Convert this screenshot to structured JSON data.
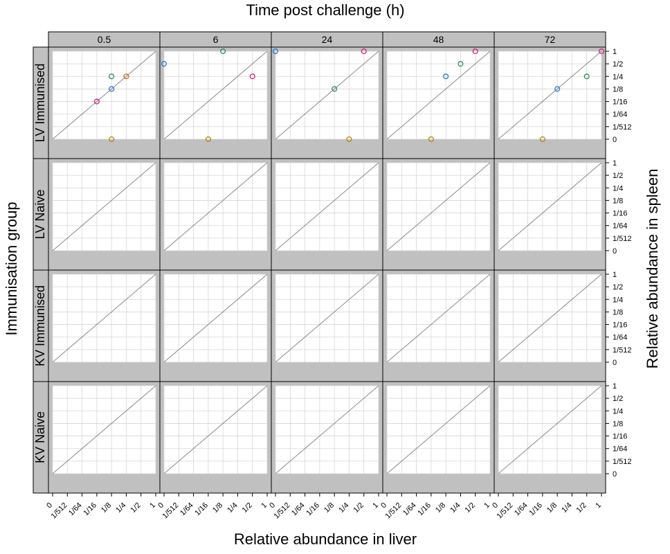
{
  "chart_data": {
    "type": "scatter",
    "title": "Time post challenge (h)",
    "xlabel": "Relative abundance in liver",
    "ylabel_right": "Relative abundance in spleen",
    "ylabel_left": "Immunisation group",
    "columns": [
      "0.5",
      "6",
      "24",
      "48",
      "72"
    ],
    "rows": [
      "LV Immunised",
      "LV Naive",
      "KV Immunised",
      "KV Naive"
    ],
    "x_ticks": [
      "0",
      "1/512",
      "1/64",
      "1/16",
      "1/8",
      "1/4",
      "1/2",
      "1"
    ],
    "y_ticks": [
      "0",
      "1/512",
      "1/64",
      "1/16",
      "1/8",
      "1/4",
      "1/2",
      "1"
    ],
    "grid": true,
    "reference_line": "y = x",
    "marker_colors": [
      "#1f78d1",
      "#2e8b57",
      "#cc1f8a",
      "#b8860b",
      "#d2691e",
      "#9b30d9",
      "#20b2aa"
    ],
    "panels": [
      {
        "row": "LV Immunised",
        "col": "0.5",
        "points": [
          {
            "x": "1/8",
            "y": "1/8"
          },
          {
            "x": "1/8",
            "y": "1/4"
          },
          {
            "x": "1/16",
            "y": "1/16"
          },
          {
            "x": "1/8",
            "y": "0"
          },
          {
            "x": "1/4",
            "y": "1/4"
          }
        ]
      },
      {
        "row": "LV Immunised",
        "col": "6",
        "points": [
          {
            "x": "0",
            "y": "1/2"
          },
          {
            "x": "1/8",
            "y": "1"
          },
          {
            "x": "1/2",
            "y": "1/4"
          },
          {
            "x": "1/16",
            "y": "0"
          }
        ]
      },
      {
        "row": "LV Immunised",
        "col": "24",
        "points": [
          {
            "x": "0",
            "y": "1"
          },
          {
            "x": "1/8",
            "y": "1/8"
          },
          {
            "x": "1/2",
            "y": "1"
          },
          {
            "x": "1/4",
            "y": "0"
          }
        ]
      },
      {
        "row": "LV Immunised",
        "col": "48",
        "points": [
          {
            "x": "1/8",
            "y": "1/4"
          },
          {
            "x": "1/4",
            "y": "1/2"
          },
          {
            "x": "1/2",
            "y": "1"
          },
          {
            "x": "1/16",
            "y": "0"
          }
        ]
      },
      {
        "row": "LV Immunised",
        "col": "72",
        "points": [
          {
            "x": "1/8",
            "y": "1/8"
          },
          {
            "x": "1/2",
            "y": "1/4"
          },
          {
            "x": "1",
            "y": "1"
          },
          {
            "x": "1/16",
            "y": "0"
          }
        ]
      }
    ]
  }
}
